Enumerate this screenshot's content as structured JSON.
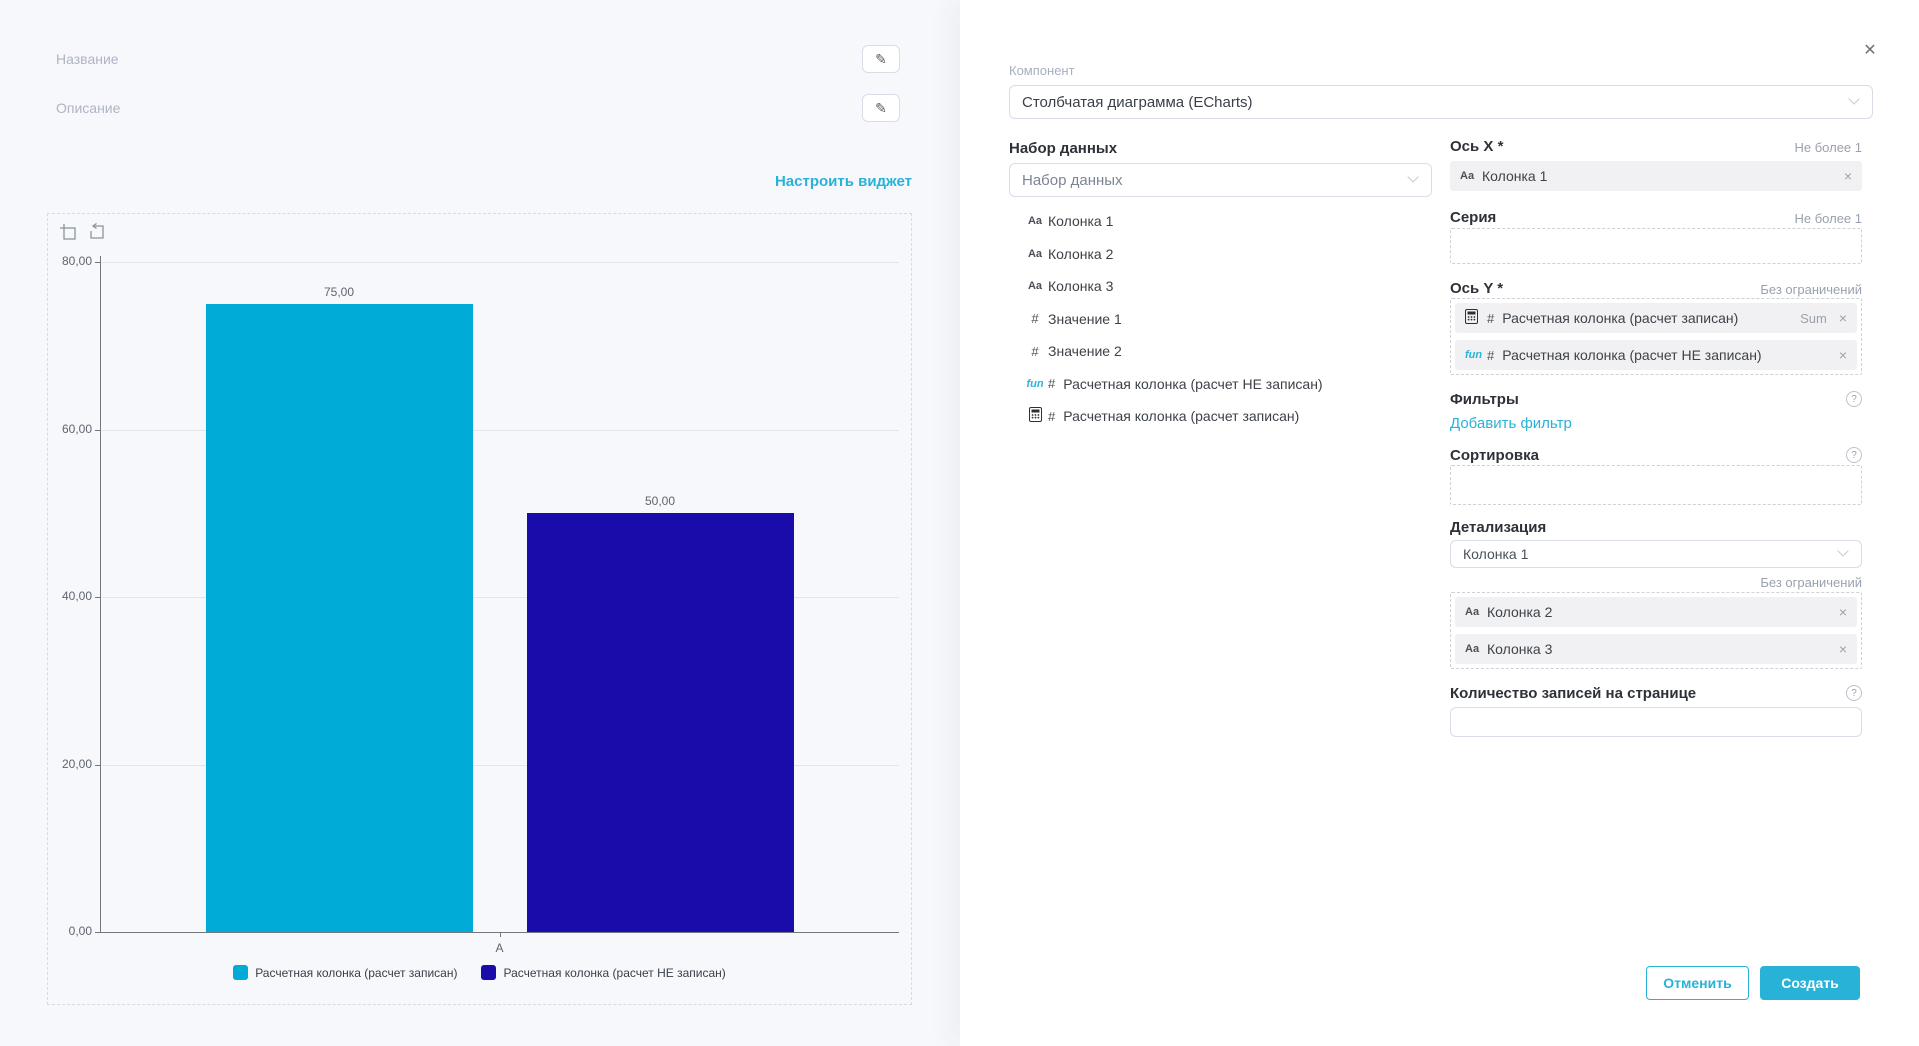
{
  "colors": {
    "accent": "#29b2d8",
    "bar_cyan": "#00acd7",
    "bar_navy": "#1a0caa",
    "page_bg": "#f7f8fb"
  },
  "icons": {
    "edit": "✎",
    "close": "✕",
    "remove": "×",
    "help": "?",
    "type_text": "Aa",
    "type_number": "#",
    "type_function": "fun"
  },
  "left": {
    "name_label": "Название",
    "description_label": "Описание",
    "configure_link": "Настроить виджет"
  },
  "chart_data": {
    "type": "bar",
    "categories": [
      "A"
    ],
    "series": [
      {
        "name": "Расчетная колонка (расчет записан)",
        "values": [
          75
        ],
        "label": "75,00",
        "color": "#00acd7"
      },
      {
        "name": "Расчетная колонка (расчет НЕ записан)",
        "values": [
          50
        ],
        "label": "50,00",
        "color": "#1a0caa"
      }
    ],
    "ylim": [
      0,
      80
    ],
    "y_ticks": [
      {
        "value": 80,
        "label": "80,00"
      },
      {
        "value": 60,
        "label": "60,00"
      },
      {
        "value": 40,
        "label": "40,00"
      },
      {
        "value": 20,
        "label": "20,00"
      },
      {
        "value": 0,
        "label": "0,00"
      }
    ],
    "grid": true,
    "legend_position": "bottom",
    "toolbox": [
      "data-zoom",
      "restore"
    ]
  },
  "modal": {
    "component": {
      "label": "Компонент",
      "value": "Столбчатая диаграмма (ECharts)"
    },
    "dataset": {
      "title": "Набор данных",
      "placeholder": "Набор данных",
      "items": [
        {
          "type": "text",
          "label": "Колонка 1"
        },
        {
          "type": "text",
          "label": "Колонка 2"
        },
        {
          "type": "text",
          "label": "Колонка 3"
        },
        {
          "type": "number",
          "label": "Значение 1"
        },
        {
          "type": "number",
          "label": "Значение 2"
        },
        {
          "type": "function",
          "label": "Расчетная колонка (расчет НЕ записан)"
        },
        {
          "type": "calculator",
          "label": "Расчетная колонка (расчет записан)"
        }
      ]
    },
    "axis_x": {
      "label": "Ось X *",
      "limit": "Не более 1",
      "chip": {
        "icon": "Aa",
        "label": "Колонка 1"
      }
    },
    "series_field": {
      "label": "Серия",
      "limit": "Не более 1"
    },
    "axis_y": {
      "label": "Ось Y *",
      "limit": "Без ограничений",
      "chips": [
        {
          "type": "calculator",
          "hash": "#",
          "label": "Расчетная колонка (расчет записан)",
          "agg": "Sum"
        },
        {
          "type": "function",
          "hash": "#",
          "label": "Расчетная колонка (расчет НЕ записан)",
          "agg": ""
        }
      ]
    },
    "filters": {
      "label": "Фильтры",
      "add_link": "Добавить фильтр"
    },
    "sorting": {
      "label": "Сортировка"
    },
    "detail": {
      "label": "Детализация",
      "value": "Колонка 1",
      "limit": "Без ограничений",
      "chips": [
        {
          "icon": "Aa",
          "label": "Колонка 2"
        },
        {
          "icon": "Aa",
          "label": "Колонка 3"
        }
      ]
    },
    "page_size": {
      "label": "Количество записей на странице"
    },
    "cancel_label": "Отменить",
    "create_label": "Создать"
  }
}
